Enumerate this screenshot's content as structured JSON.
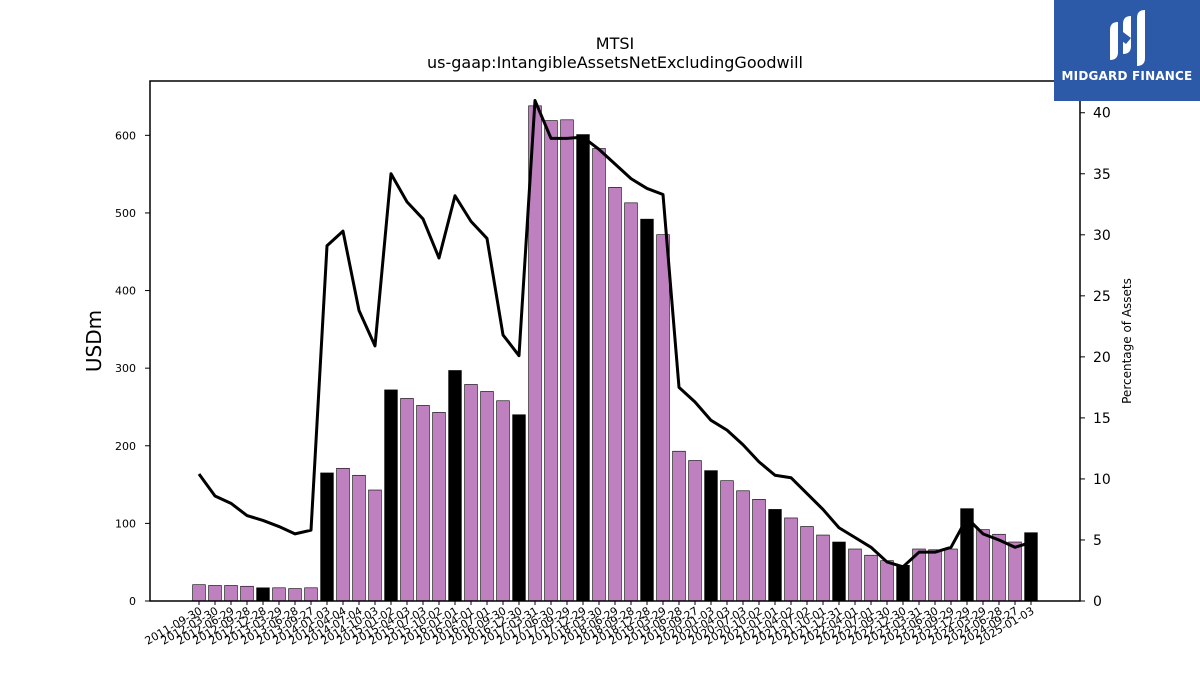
{
  "chart_data": {
    "type": "bar",
    "title": "MTSI",
    "subtitle": "us-gaap:IntangibleAssetsNetExcludingGoodwill",
    "ylabel": "USDm",
    "y2label": "Percentage of Assets",
    "ylim": [
      0,
      670
    ],
    "y2lim": [
      0,
      42.6
    ],
    "yticks": [
      0,
      100,
      200,
      300,
      400,
      500,
      600
    ],
    "y2ticks": [
      0,
      5,
      10,
      15,
      20,
      25,
      30,
      35,
      40
    ],
    "grid": false,
    "categories": [
      "2011-09-30",
      "2012-03-30",
      "2012-06-29",
      "2012-09-28",
      "2012-12-28",
      "2013-03-29",
      "2013-06-28",
      "2013-09-27",
      "2014-01-03",
      "2014-04-04",
      "2014-07-04",
      "2014-10-03",
      "2015-01-02",
      "2015-04-03",
      "2015-07-03",
      "2015-10-02",
      "2016-01-01",
      "2016-04-01",
      "2016-07-01",
      "2016-09-30",
      "2016-12-30",
      "2017-03-31",
      "2017-06-30",
      "2017-09-29",
      "2017-12-29",
      "2018-03-30",
      "2018-06-29",
      "2018-09-28",
      "2018-12-28",
      "2019-03-29",
      "2019-06-28",
      "2019-09-27",
      "2020-01-03",
      "2020-04-03",
      "2020-07-03",
      "2020-10-02",
      "2021-01-01",
      "2021-04-02",
      "2021-07-02",
      "2021-10-01",
      "2021-12-31",
      "2022-04-01",
      "2022-07-01",
      "2022-09-30",
      "2022-12-30",
      "2023-03-31",
      "2023-06-30",
      "2023-09-29",
      "2023-12-29",
      "2024-03-29",
      "2024-06-28",
      "2024-09-27",
      "2025-01-03"
    ],
    "values": [
      21,
      20,
      20,
      19,
      17,
      17,
      16,
      17,
      165,
      171,
      162,
      143,
      272,
      261,
      252,
      243,
      297,
      279,
      270,
      258,
      240,
      638,
      619,
      620,
      601,
      583,
      533,
      513,
      492,
      472,
      193,
      181,
      168,
      155,
      142,
      131,
      118,
      107,
      96,
      85,
      76,
      67,
      59,
      52,
      46,
      67,
      66,
      67,
      119,
      92,
      86,
      76,
      88
    ],
    "highlight": [
      false,
      false,
      false,
      false,
      true,
      false,
      false,
      false,
      true,
      false,
      false,
      false,
      true,
      false,
      false,
      false,
      true,
      false,
      false,
      false,
      true,
      false,
      false,
      false,
      true,
      false,
      false,
      false,
      true,
      false,
      false,
      false,
      true,
      false,
      false,
      false,
      true,
      false,
      false,
      false,
      true,
      false,
      false,
      false,
      true,
      false,
      false,
      false,
      true,
      false,
      false,
      false,
      true
    ],
    "pct_of_assets": [
      10.4,
      8.6,
      8.0,
      7.0,
      6.6,
      6.1,
      5.5,
      5.8,
      29.1,
      30.3,
      23.8,
      20.9,
      35.0,
      32.7,
      31.3,
      28.1,
      33.2,
      31.1,
      29.7,
      21.8,
      20.1,
      41.0,
      37.9,
      37.9,
      38.0,
      37.0,
      35.8,
      34.6,
      33.8,
      33.3,
      17.5,
      16.3,
      14.8,
      14.0,
      12.8,
      11.4,
      10.3,
      10.1,
      8.8,
      7.5,
      6.0,
      5.2,
      4.4,
      3.2,
      2.8,
      4.0,
      4.0,
      4.4,
      6.8,
      5.5,
      5.0,
      4.4,
      4.8
    ],
    "colors": {
      "bar": "#bf80bf",
      "highlight": "#000000",
      "line": "#000000"
    }
  },
  "logo": {
    "text": "MIDGARD FINANCE",
    "color": "#2c5aa8"
  }
}
